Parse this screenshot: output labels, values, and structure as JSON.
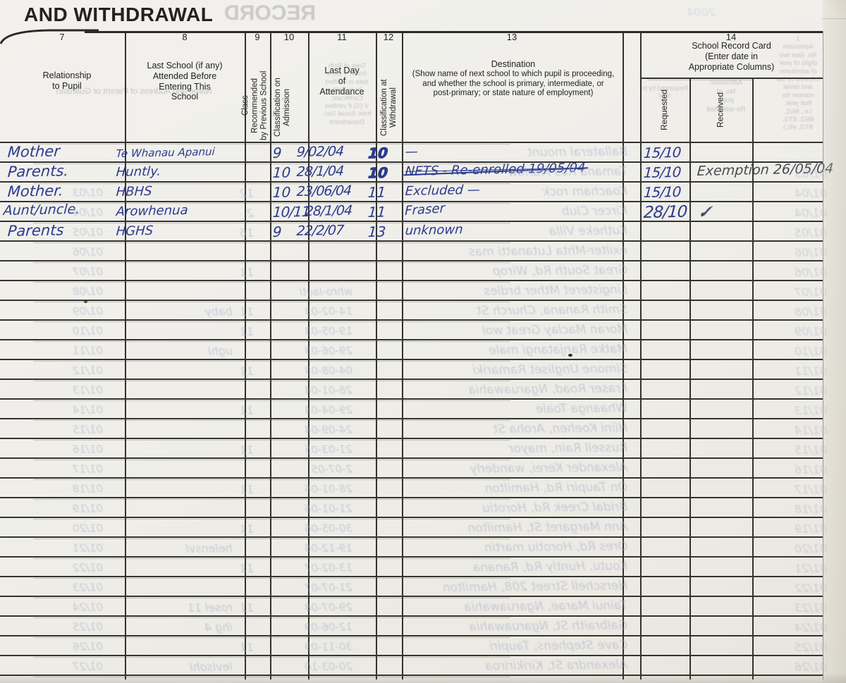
{
  "page": {
    "title": "AND WITHDRAWAL"
  },
  "table": {
    "columns": [
      {
        "number": "7",
        "label": "Relationship\nto Pupil"
      },
      {
        "number": "8",
        "label": "Last School (if any)\nAttended Before\nEntering This\nSchool"
      },
      {
        "number": "9",
        "label": "Class Recommended\nby Previous School"
      },
      {
        "number": "10",
        "label": "Classification on\nAdmission"
      },
      {
        "number": "11",
        "label": "Last Day\nof\nAttendance"
      },
      {
        "number": "12",
        "label": "Classification at\nWithdrawal"
      },
      {
        "number": "13",
        "label": "Destination",
        "note": "(Show name of next school to which pupil is proceeding,\nand whether the school is primary, intermediate, or\npost-primary; or state nature of employment)"
      },
      {
        "number": "14",
        "label": "School Record Card\n(Enter date in\nAppropriate Columns)",
        "subcolumns": [
          "Requested",
          "Received"
        ]
      }
    ],
    "rows": [
      {
        "relationship": "Mother",
        "last_school": "Te Whanau Apanui",
        "classification_admission": "9",
        "last_day": "9/02/04",
        "classification_withdrawal": "10",
        "destination": "—",
        "requested": "15/10",
        "received": ""
      },
      {
        "relationship": "Parents.",
        "last_school": "Huntly.",
        "classification_admission": "10",
        "last_day": "28/1/04",
        "classification_withdrawal": "10",
        "destination": "NETS - Re-enrolled 19/05/04",
        "requested": "15/10",
        "received": "Exemption 26/05/04"
      },
      {
        "relationship": "Mother.",
        "last_school": "HBHS",
        "classification_admission": "10",
        "last_day": "23/06/04",
        "classification_withdrawal": "11",
        "destination": "Excluded —",
        "requested": "15/10",
        "received": ""
      },
      {
        "relationship": "Aunt/uncle.",
        "last_school": "Arowhenua",
        "classification_admission": "10/11",
        "last_day": "28/1/04",
        "classification_withdrawal": "11",
        "destination": "Fraser",
        "requested": "28/10",
        "received": "✓"
      },
      {
        "relationship": "Parents",
        "last_school": "HGHS",
        "classification_admission": "9",
        "last_day": "22/2/07",
        "classification_withdrawal": "13",
        "destination": "unknown",
        "requested": "",
        "received": ""
      }
    ]
  },
  "bleed_through": {
    "header": {
      "title": "RECORD",
      "corner_note": "2004",
      "parent_guardian": "Name and Address of Parent or Guardian",
      "date_of_birth": "Date of Birth\nInsert V (B) if\ndate is verified\nfrom Birth\nCertificate;\nV (S) if verified\nfrom Social Sec.\nDepartment",
      "admission_no": "1\nAdmission\nNo. (last two\ndigits of year\nof admission\nfollowed by bar\nand serial\nnumber for\nthat year,\ni.e., 86/1,\n86/2; 87/1,\n87/2, etc.)",
      "readmitted": "Admission\nNo. of\npupil\nRe-admitted",
      "requested_by": "Requested by to step"
    },
    "rows": [
      {
        "a": "",
        "b": "",
        "c": "",
        "d": "",
        "e": "Ballateral mount",
        "f": ""
      },
      {
        "a": "",
        "b": "",
        "c": "",
        "d": "",
        "e": "Tamana Ros Marlow",
        "f": "01/03"
      },
      {
        "a": "01/03",
        "b": "",
        "c": "12",
        "d": "",
        "e": "Koacham rock",
        "f": "01/04"
      },
      {
        "a": "01/04",
        "b": "",
        "c": "2",
        "d": "",
        "e": "Kircer Club",
        "f": "01/04"
      },
      {
        "a": "01/05",
        "b": "",
        "c": "16",
        "d": "",
        "e": "Kutheke Villa",
        "f": "01/05"
      },
      {
        "a": "01/06",
        "b": "",
        "c": "",
        "d": "",
        "e": "exilter-Mhta Lutanatti mas",
        "f": "01/06"
      },
      {
        "a": "01/07",
        "b": "",
        "c": "11",
        "d": "",
        "e": "Great South Rd, Wirop",
        "f": "01/06"
      },
      {
        "a": "01/08",
        "b": "",
        "c": "",
        "d": "whro-lauti",
        "e": "Lingisteret Mther brdles",
        "f": "01/07"
      },
      {
        "a": "01/09",
        "b": "baby",
        "c": "11",
        "d": "14-02-03",
        "e": "Smith Ranana, Church St",
        "f": "01/08"
      },
      {
        "a": "01/10",
        "b": "",
        "c": "11",
        "d": "19-05-03",
        "e": "Moran Maclay Great wol",
        "f": "01/09"
      },
      {
        "a": "01/11",
        "b": "ughl",
        "c": "",
        "d": "29-06-03",
        "e": "Matke Ranjatangi male",
        "f": "01/10"
      },
      {
        "a": "01/12",
        "b": "",
        "c": "11",
        "d": "04-08-03",
        "e": "Simone Ungliset Ramariki",
        "f": "01/11"
      },
      {
        "a": "01/13",
        "b": "",
        "c": "",
        "d": "28-01-04",
        "e": "Fraser Road, Ngaruawahia",
        "f": "01/12"
      },
      {
        "a": "01/14",
        "b": "",
        "c": "11",
        "d": "29-04-04",
        "e": "Whaanga Toale",
        "f": "01/13"
      },
      {
        "a": "01/15",
        "b": "",
        "c": "",
        "d": "24-09-04",
        "e": "Hiini Koehen, Aroha St",
        "f": "01/14"
      },
      {
        "a": "01/16",
        "b": "",
        "c": "11",
        "d": "21-03-05",
        "e": "Russell Rain, mayor",
        "f": "01/15"
      },
      {
        "a": "01/17",
        "b": "",
        "c": "",
        "d": "2-07-05",
        "e": "Alexander Kerei, wanderly",
        "f": "01/16"
      },
      {
        "a": "01/18",
        "b": "",
        "c": "11",
        "d": "28-01-06",
        "e": "On Taupiri Rd, Hamilton",
        "f": "01/17"
      },
      {
        "a": "01/19",
        "b": "",
        "c": "",
        "d": "21-01-06",
        "e": "Bridal Creek Rd, Horotiu",
        "f": "01/18"
      },
      {
        "a": "01/20",
        "b": "",
        "c": "11",
        "d": "30-05-06",
        "e": "Ann Margaret St, Hamilton",
        "f": "01/19"
      },
      {
        "a": "01/21",
        "b": "helensvl",
        "c": "",
        "d": "19-12-06",
        "e": "Ores Rd, Horotiu martin",
        "f": "01/20"
      },
      {
        "a": "01/22",
        "b": "",
        "c": "11",
        "d": "13-02-07",
        "e": "Koutu, Huntly Rd, Ranana",
        "f": "01/21"
      },
      {
        "a": "01/23",
        "b": "",
        "c": "",
        "d": "21-07-07",
        "e": "Herschell Street 208, Hamilton",
        "f": "01/22"
      },
      {
        "a": "01/24",
        "b": "rosel 11",
        "c": "11",
        "d": "29-07-08",
        "e": "Tainui Marae, Ngaruawahia",
        "f": "01/23"
      },
      {
        "a": "01/25",
        "b": "ihg 4",
        "c": "",
        "d": "12-06-09",
        "e": "Galbraith St, Ngaruawahia",
        "f": "01/24"
      },
      {
        "a": "01/26",
        "b": "",
        "c": "11",
        "d": "30-11-09",
        "e": "Cave Stephens, Taupiri",
        "f": "01/25"
      },
      {
        "a": "01/27",
        "b": "levisohl",
        "c": "",
        "d": "20-03-10",
        "e": "Alexandra St, Kirikiriroa",
        "f": "01/26"
      }
    ]
  },
  "colors": {
    "ink_blue": "#2c3a8e",
    "ink_grey": "#474b52",
    "paper": "#efeee9",
    "grid_line": "#34322e",
    "bleed_through": "#a6b0cb"
  }
}
